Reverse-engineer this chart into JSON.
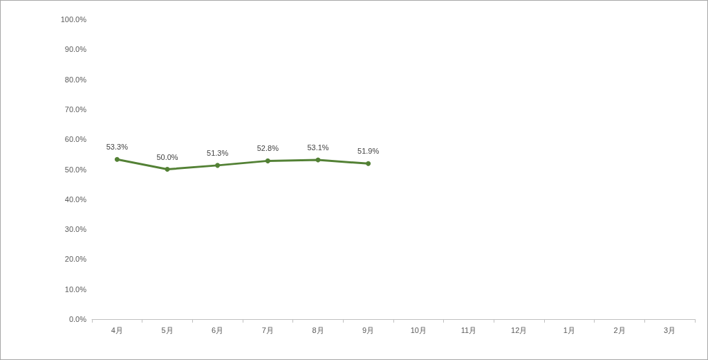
{
  "chart_data": {
    "type": "line",
    "categories": [
      "4月",
      "5月",
      "6月",
      "7月",
      "8月",
      "9月",
      "10月",
      "11月",
      "12月",
      "1月",
      "2月",
      "3月"
    ],
    "series": [
      {
        "color": "#538135",
        "values": [
          53.3,
          50.0,
          51.3,
          52.8,
          53.1,
          51.9,
          null,
          null,
          null,
          null,
          null,
          null
        ],
        "value_labels": [
          "53.3%",
          "50.0%",
          "51.3%",
          "52.8%",
          "53.1%",
          "51.9%",
          null,
          null,
          null,
          null,
          null,
          null
        ]
      }
    ],
    "ylim": [
      0,
      100
    ],
    "yticks": [
      {
        "value": 0,
        "label": "0.0%"
      },
      {
        "value": 10,
        "label": "10.0%"
      },
      {
        "value": 20,
        "label": "20.0%"
      },
      {
        "value": 30,
        "label": "30.0%"
      },
      {
        "value": 40,
        "label": "40.0%"
      },
      {
        "value": 50,
        "label": "50.0%"
      },
      {
        "value": 60,
        "label": "60.0%"
      },
      {
        "value": 70,
        "label": "70.0%"
      },
      {
        "value": 80,
        "label": "80.0%"
      },
      {
        "value": 90,
        "label": "90.0%"
      },
      {
        "value": 100,
        "label": "100.0%"
      }
    ],
    "grid": false,
    "marker": "circle",
    "line_style": "solid"
  }
}
